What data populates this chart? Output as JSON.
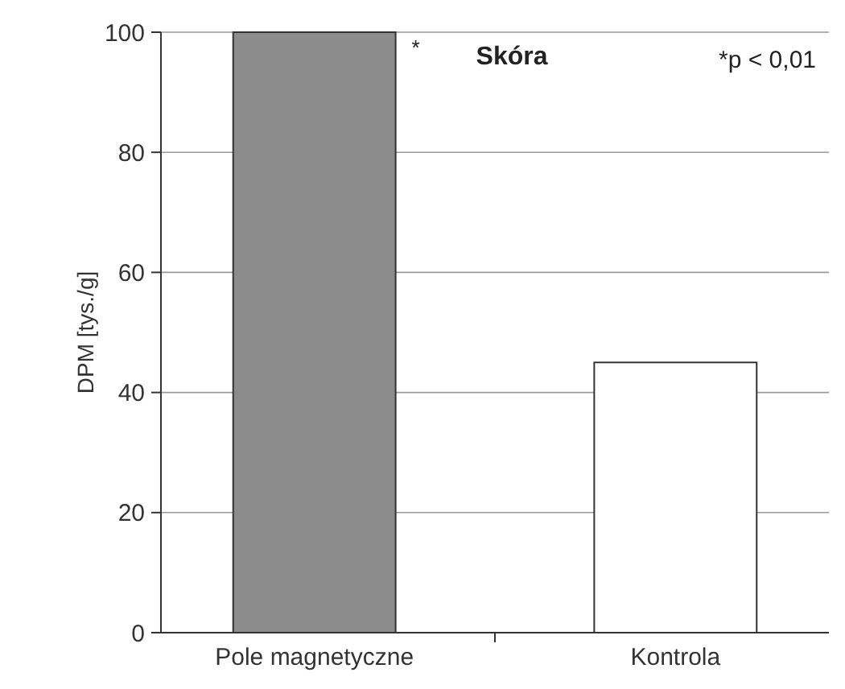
{
  "chart_data": {
    "type": "bar",
    "title": "Skóra",
    "ylabel": "DPM [tys./g]",
    "categories": [
      "Pole magnetyczne",
      "Kontrola"
    ],
    "values": [
      100,
      45
    ],
    "colors": [
      "#8c8c8c",
      "#ffffff"
    ],
    "ylim": [
      0,
      100
    ],
    "yticks": [
      0,
      20,
      40,
      60,
      80,
      100
    ],
    "grid": "y",
    "annotations": [
      "*",
      "*p < 0,01"
    ]
  }
}
